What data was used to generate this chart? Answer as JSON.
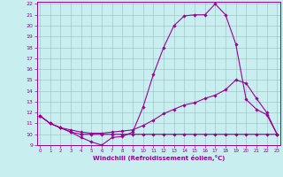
{
  "line1_x": [
    0,
    1,
    2,
    3,
    4,
    5,
    6,
    7,
    8,
    9,
    10,
    11,
    12,
    13,
    14,
    15,
    16,
    17,
    18,
    19,
    20,
    21,
    22,
    23
  ],
  "line1_y": [
    11.7,
    11.0,
    10.6,
    10.2,
    9.7,
    9.3,
    9.0,
    9.7,
    9.8,
    10.2,
    12.5,
    15.5,
    18.0,
    20.0,
    20.9,
    21.0,
    21.0,
    22.0,
    21.0,
    18.3,
    13.2,
    12.3,
    11.8,
    10.0
  ],
  "line2_x": [
    0,
    1,
    2,
    3,
    4,
    5,
    6,
    7,
    8,
    9,
    10,
    11,
    12,
    13,
    14,
    15,
    16,
    17,
    18,
    19,
    20,
    21,
    22,
    23
  ],
  "line2_y": [
    11.7,
    11.0,
    10.6,
    10.4,
    10.2,
    10.1,
    10.1,
    10.2,
    10.3,
    10.4,
    10.8,
    11.3,
    11.9,
    12.3,
    12.7,
    12.9,
    13.3,
    13.6,
    14.1,
    15.0,
    14.7,
    13.3,
    12.0,
    10.0
  ],
  "line3_x": [
    0,
    1,
    2,
    3,
    4,
    5,
    6,
    7,
    8,
    9,
    10,
    11,
    12,
    13,
    14,
    15,
    16,
    17,
    18,
    19,
    20,
    21,
    22,
    23
  ],
  "line3_y": [
    11.7,
    11.0,
    10.6,
    10.2,
    10.0,
    10.0,
    10.0,
    10.0,
    10.0,
    10.0,
    10.0,
    10.0,
    10.0,
    10.0,
    10.0,
    10.0,
    10.0,
    10.0,
    10.0,
    10.0,
    10.0,
    10.0,
    10.0,
    10.0
  ],
  "line_color": "#990099",
  "bg_color": "#c8eef0",
  "grid_color": "#9bbfc0",
  "xlabel": "Windchill (Refroidissement éolien,°C)",
  "xlabel_color": "#990099",
  "ylabel_min": 9,
  "ylabel_max": 22,
  "xlabel_min": 0,
  "xlabel_max": 23,
  "marker": "D",
  "marker_size": 1.8,
  "line_width": 0.8
}
